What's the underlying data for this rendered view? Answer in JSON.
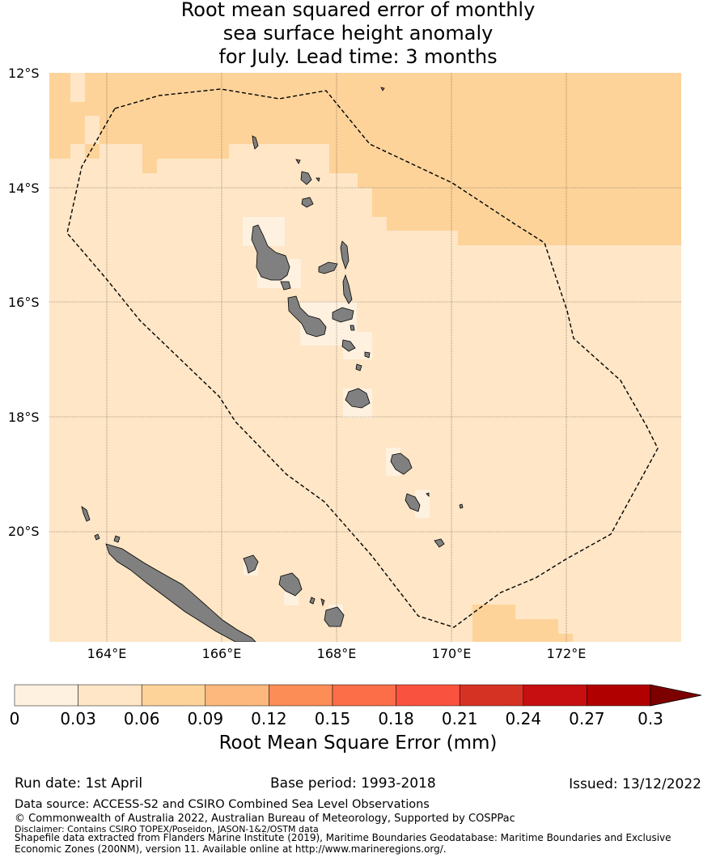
{
  "title": {
    "line1": "Root mean squared error of monthly",
    "line2": "sea surface height anomaly",
    "line3": "for July. Lead time: 3 months"
  },
  "map": {
    "lat_labels": [
      "12°S",
      "14°S",
      "16°S",
      "18°S",
      "20°S"
    ],
    "lon_labels": [
      "164°E",
      "166°E",
      "168°E",
      "170°E",
      "172°E"
    ],
    "extent": {
      "lon_min": 163.0,
      "lon_max": 174.0,
      "lat_min": -21.9,
      "lat_max": -12.0
    },
    "colors": {
      "land": "#808080",
      "eez_line": "#000000"
    }
  },
  "colorbar": {
    "ticks": [
      "0",
      "0.03",
      "0.06",
      "0.09",
      "0.12",
      "0.15",
      "0.18",
      "0.21",
      "0.24",
      "0.27",
      "0.3"
    ],
    "colors": [
      "#fff1df",
      "#fee6c6",
      "#fdd39a",
      "#fdb87d",
      "#fc8d56",
      "#fb6e48",
      "#f9523e",
      "#d63224",
      "#c70f11",
      "#b00000"
    ],
    "extend_color": "#7d0000",
    "label": "Root Mean Square Error (mm)"
  },
  "footer": {
    "run_date": "Run date: 1st April",
    "base_period": "Base period: 1993-2018",
    "issued": "Issued: 13/12/2022",
    "data_source": "Data source: ACCESS-S2 and CSIRO Combined Sea Level Observations",
    "copyright": "© Commonwealth of Australia 2022, Australian Bureau of Meteorology, Supported by COSPPac",
    "disclaimer": "Disclaimer: Contains CSIRO TOPEX/Poseidon, JASON-1&2/OSTM data",
    "shapefile_line1": "Shapefile data extracted from Flanders Marine Institute (2019), Maritime Boundaries Geodatabase: Maritime Boundaries and Exclusive",
    "shapefile_line2": "Economic Zones (200NM), version 11. Available online at http://www.marineregions.org/."
  }
}
